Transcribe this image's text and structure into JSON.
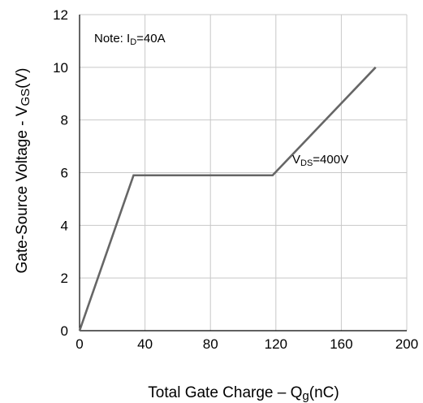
{
  "chart_data": {
    "type": "line",
    "title": "",
    "xlabel": {
      "main": "Total Gate Charge  –  Q",
      "sub": "g",
      "unit": "(nC)"
    },
    "ylabel": {
      "main": "Gate-Source Voltage -  V",
      "sub": "GS",
      "unit": "(V)"
    },
    "xlim": [
      0,
      200
    ],
    "ylim": [
      0,
      12
    ],
    "xticks": [
      0,
      40,
      80,
      120,
      160,
      200
    ],
    "yticks": [
      0,
      2,
      4,
      6,
      8,
      10,
      12
    ],
    "grid": true,
    "series": [
      {
        "x": [
          0,
          33,
          118,
          181
        ],
        "y": [
          0,
          5.9,
          5.9,
          10
        ],
        "color": "#666666"
      }
    ],
    "annotations": [
      {
        "id": "note",
        "prefix": "Note: I",
        "sub": "D",
        "suffix": "=40A"
      },
      {
        "id": "vds",
        "prefix": "V",
        "sub": "DS",
        "suffix": "=400V"
      }
    ]
  },
  "colors": {
    "grid": "#c8c8c8",
    "axis": "#000000",
    "line": "#666666"
  }
}
